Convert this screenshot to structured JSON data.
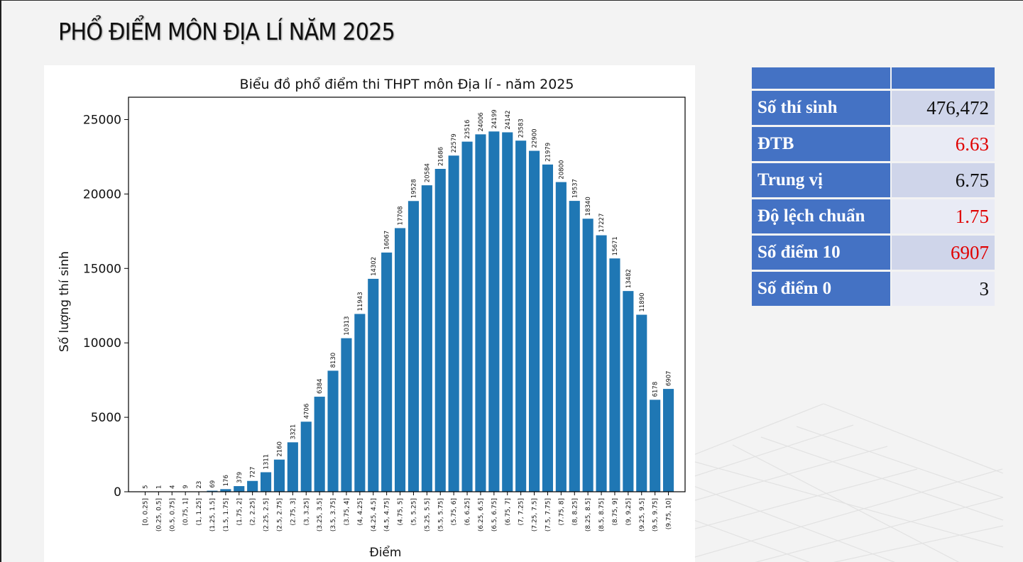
{
  "slide": {
    "title": "PHỔ ĐIỂM MÔN ĐỊA LÍ NĂM 2025"
  },
  "stats_table": {
    "header": [
      "",
      ""
    ],
    "rows": [
      {
        "label": "Số thí sinh",
        "value": "476,472",
        "highlight": false
      },
      {
        "label": "ĐTB",
        "value": "6.63",
        "highlight": true
      },
      {
        "label": "Trung vị",
        "value": "6.75",
        "highlight": false
      },
      {
        "label": "Độ lệch chuẩn",
        "value": "1.75",
        "highlight": true
      },
      {
        "label": "Số điểm 10",
        "value": "6907",
        "highlight": true
      },
      {
        "label": "Số điểm 0",
        "value": "3",
        "highlight": false
      }
    ],
    "colors": {
      "header_bg": "#4472c4",
      "highlight_text": "#e00000"
    }
  },
  "chart_data": {
    "type": "bar",
    "title": "Biểu đồ phổ điểm thi THPT môn Địa lí - năm 2025",
    "xlabel": "Điểm",
    "ylabel": "Số lượng thí sinh",
    "ylim": [
      0,
      26500
    ],
    "yticks": [
      0,
      5000,
      10000,
      15000,
      20000,
      25000
    ],
    "grid": false,
    "legend": null,
    "bar_color": "#1f77b4",
    "categories": [
      "[0, 0.25]",
      "(0.25, 0.5]",
      "(0.5, 0.75]",
      "(0.75, 1]",
      "(1, 1.25]",
      "(1.25, 1.5]",
      "(1.5, 1.75]",
      "(1.75, 2]",
      "(2, 2.25]",
      "(2.25, 2.5]",
      "(2.5, 2.75]",
      "(2.75, 3]",
      "(3, 3.25]",
      "(3.25, 3.5]",
      "(3.5, 3.75]",
      "(3.75, 4]",
      "(4, 4.25]",
      "(4.25, 4.5]",
      "(4.5, 4.75]",
      "(4.75, 5]",
      "(5, 5.25]",
      "(5.25, 5.5]",
      "(5.5, 5.75]",
      "(5.75, 6]",
      "(6, 6.25]",
      "(6.25, 6.5]",
      "(6.5, 6.75]",
      "(6.75, 7]",
      "(7, 7.25]",
      "(7.25, 7.5]",
      "(7.5, 7.75]",
      "(7.75, 8]",
      "(8, 8.25]",
      "(8.25, 8.5]",
      "(8.5, 8.75]",
      "(8.75, 9]",
      "(9, 9.25]",
      "(9.25, 9.5]",
      "(9.5, 9.75]",
      "(9.75, 10]"
    ],
    "values": [
      5,
      1,
      4,
      9,
      23,
      69,
      176,
      379,
      727,
      1311,
      2160,
      3321,
      4706,
      6384,
      8130,
      10313,
      11943,
      14302,
      16067,
      17708,
      19528,
      20584,
      21686,
      22579,
      23516,
      24006,
      24199,
      24142,
      23583,
      22900,
      21979,
      20800,
      19537,
      18340,
      17227,
      15671,
      13482,
      11890,
      6178,
      6907
    ]
  }
}
